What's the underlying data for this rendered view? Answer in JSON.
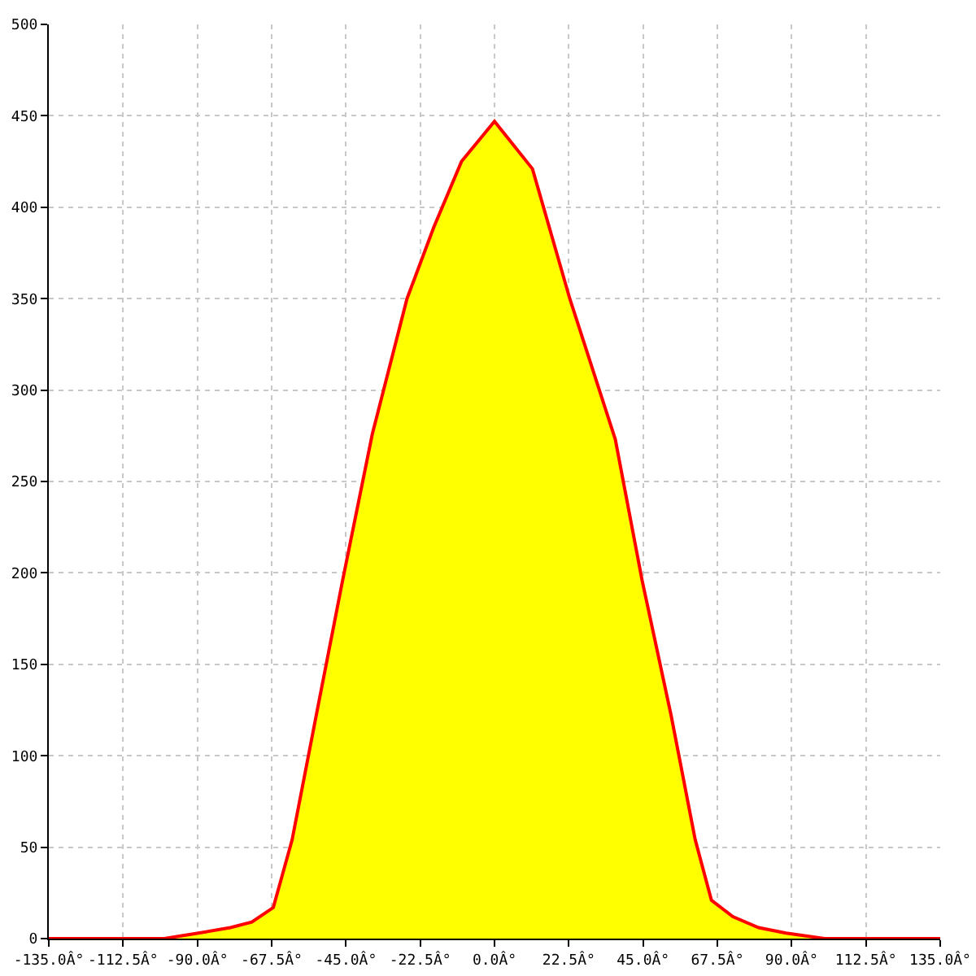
{
  "chart_data": {
    "type": "area",
    "xlim": [
      -135,
      135
    ],
    "ylim": [
      0,
      500
    ],
    "xticks": [
      {
        "value": -135,
        "label": "-135.0Â°"
      },
      {
        "value": -112.5,
        "label": "-112.5Â°"
      },
      {
        "value": -90,
        "label": "-90.0Â°"
      },
      {
        "value": -67.5,
        "label": "-67.5Â°"
      },
      {
        "value": -45,
        "label": "-45.0Â°"
      },
      {
        "value": -22.5,
        "label": "-22.5Â°"
      },
      {
        "value": 0,
        "label": "0.0Â°"
      },
      {
        "value": 22.5,
        "label": "22.5Â°"
      },
      {
        "value": 45,
        "label": "45.0Â°"
      },
      {
        "value": 67.5,
        "label": "67.5Â°"
      },
      {
        "value": 90,
        "label": "90.0Â°"
      },
      {
        "value": 112.5,
        "label": "112.5Â°"
      },
      {
        "value": 135,
        "label": "135.0Â°"
      }
    ],
    "yticks": [
      0,
      50,
      100,
      150,
      200,
      250,
      300,
      350,
      400,
      450,
      500
    ],
    "grid": true,
    "marker": "none",
    "series": [
      {
        "color": "#ffff00",
        "x": [
          -100,
          -89.7,
          -80,
          -73.5,
          -67,
          -61.3,
          -54,
          -46,
          -37,
          -26.5,
          -18.4,
          -10,
          0,
          11.5,
          22.8,
          36.6,
          44.7,
          53.5,
          60.8,
          65.7,
          72.2,
          80,
          88.3,
          100
        ],
        "values": [
          0,
          3,
          6,
          9,
          17,
          54,
          122,
          196,
          276,
          350,
          389,
          425,
          447,
          421,
          350,
          273,
          196,
          122,
          54,
          21,
          12,
          6,
          3,
          0
        ]
      },
      {
        "type": "line",
        "color": "#ff0000",
        "x": [
          -135,
          -100,
          -89.7,
          -80,
          -73.5,
          -67,
          -61.3,
          -54,
          -46,
          -37,
          -26.5,
          -18.4,
          -10,
          0,
          11.5,
          22.8,
          36.6,
          44.7,
          53.5,
          60.8,
          65.7,
          72.2,
          80,
          88.3,
          100,
          135
        ],
        "values": [
          0,
          0,
          3,
          6,
          9,
          17,
          54,
          122,
          196,
          276,
          350,
          389,
          425,
          447,
          421,
          350,
          273,
          196,
          122,
          54,
          21,
          12,
          6,
          3,
          0,
          0
        ]
      }
    ]
  }
}
